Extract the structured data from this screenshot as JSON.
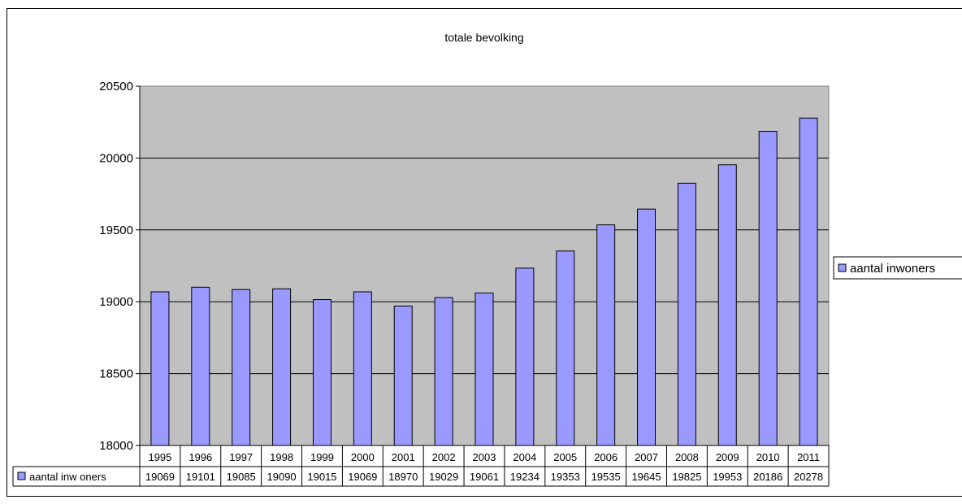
{
  "chart_data": {
    "type": "bar",
    "title": "totale bevolking",
    "categories": [
      "1995",
      "1996",
      "1997",
      "1998",
      "1999",
      "2000",
      "2001",
      "2002",
      "2003",
      "2004",
      "2005",
      "2006",
      "2007",
      "2008",
      "2009",
      "2010",
      "2011"
    ],
    "series": [
      {
        "name": "aantal inwoners",
        "table_label": "aantal inw oners",
        "values": [
          19069,
          19101,
          19085,
          19090,
          19015,
          19069,
          18970,
          19029,
          19061,
          19234,
          19353,
          19535,
          19645,
          19825,
          19953,
          20186,
          20278
        ],
        "color": "#9999ff"
      }
    ],
    "ylim": [
      18000,
      20500
    ],
    "yticks": [
      18000,
      18500,
      19000,
      19500,
      20000,
      20500
    ],
    "grid": true,
    "legend": "right",
    "data_table": true,
    "plot_background": "#c0c0c0"
  }
}
